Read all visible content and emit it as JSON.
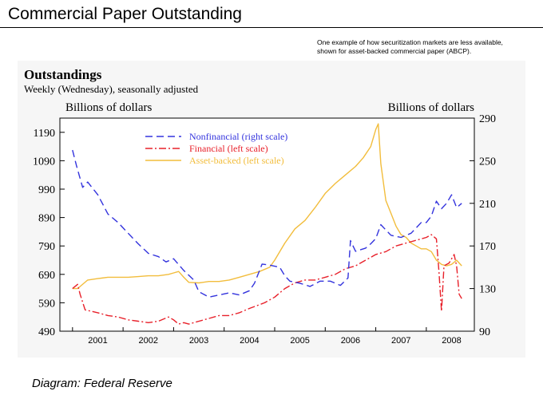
{
  "slide": {
    "title": "Commercial Paper Outstanding",
    "note_line1": "One example of how securitization markets are less available,",
    "note_line2": "shown for asset-backed commercial paper (ABCP).",
    "credit": "Diagram:  Federal Reserve"
  },
  "chart_data": {
    "type": "line",
    "title": "Outstandings",
    "subtitle": "Weekly (Wednesday), seasonally adjusted",
    "left_axis_label": "Billions of dollars",
    "right_axis_label": "Billions of dollars",
    "x_ticks": [
      "2001",
      "2002",
      "2003",
      "2004",
      "2005",
      "2006",
      "2007",
      "2008"
    ],
    "xlim": [
      2000.75,
      2008.95
    ],
    "ylim_left": [
      490,
      1240
    ],
    "ylim_right": [
      90,
      290
    ],
    "left_ticks": [
      490,
      590,
      690,
      790,
      890,
      990,
      1090,
      1190
    ],
    "right_ticks": [
      90,
      130,
      170,
      210,
      250,
      290
    ],
    "legend_position": "top-left",
    "series": [
      {
        "name": "Nonfinancial (right scale)",
        "axis": "right",
        "color": "#3333dd",
        "dash": "dashed",
        "x": [
          2001.0,
          2001.08,
          2001.2,
          2001.3,
          2001.5,
          2001.7,
          2001.9,
          2002.1,
          2002.3,
          2002.5,
          2002.7,
          2002.85,
          2003.0,
          2003.2,
          2003.4,
          2003.5,
          2003.7,
          2003.9,
          2004.1,
          2004.3,
          2004.5,
          2004.6,
          2004.75,
          2004.9,
          2005.0,
          2005.1,
          2005.2,
          2005.3,
          2005.5,
          2005.7,
          2005.9,
          2006.1,
          2006.3,
          2006.45,
          2006.5,
          2006.6,
          2006.8,
          2006.9,
          2007.0,
          2007.1,
          2007.2,
          2007.3,
          2007.5,
          2007.7,
          2007.9,
          2008.0,
          2008.1,
          2008.2,
          2008.3,
          2008.4,
          2008.5,
          2008.6,
          2008.7
        ],
        "values": [
          260,
          245,
          225,
          230,
          218,
          200,
          192,
          182,
          172,
          163,
          160,
          155,
          158,
          147,
          138,
          127,
          122,
          124,
          126,
          124,
          128,
          135,
          153,
          152,
          151,
          150,
          142,
          137,
          135,
          132,
          137,
          137,
          133,
          140,
          175,
          165,
          168,
          172,
          177,
          190,
          185,
          180,
          178,
          182,
          192,
          192,
          198,
          212,
          205,
          210,
          218,
          206,
          210
        ]
      },
      {
        "name": "Financial (left scale)",
        "axis": "left",
        "color": "#e8202a",
        "dash": "dashdot",
        "x": [
          2001.0,
          2001.1,
          2001.15,
          2001.25,
          2001.5,
          2001.7,
          2001.9,
          2002.1,
          2002.3,
          2002.5,
          2002.7,
          2002.9,
          2003.0,
          2003.1,
          2003.2,
          2003.3,
          2003.5,
          2003.7,
          2003.9,
          2004.1,
          2004.3,
          2004.5,
          2004.8,
          2005.0,
          2005.2,
          2005.4,
          2005.6,
          2005.8,
          2006.0,
          2006.2,
          2006.4,
          2006.6,
          2006.8,
          2007.0,
          2007.2,
          2007.4,
          2007.6,
          2007.8,
          2008.0,
          2008.1,
          2008.2,
          2008.25,
          2008.3,
          2008.35,
          2008.45,
          2008.55,
          2008.6,
          2008.65,
          2008.7
        ],
        "values": [
          640,
          655,
          620,
          565,
          555,
          545,
          540,
          530,
          525,
          520,
          525,
          540,
          530,
          515,
          520,
          515,
          525,
          535,
          545,
          545,
          555,
          570,
          590,
          610,
          640,
          660,
          670,
          670,
          680,
          690,
          710,
          720,
          740,
          760,
          770,
          790,
          800,
          810,
          820,
          830,
          815,
          700,
          560,
          720,
          730,
          760,
          720,
          620,
          605
        ]
      },
      {
        "name": "Asset-backed (left scale)",
        "axis": "left",
        "color": "#f2bd3c",
        "dash": "solid",
        "x": [
          2001.0,
          2001.1,
          2001.3,
          2001.5,
          2001.7,
          2001.9,
          2002.1,
          2002.3,
          2002.5,
          2002.7,
          2002.9,
          2003.0,
          2003.1,
          2003.2,
          2003.3,
          2003.5,
          2003.7,
          2003.9,
          2004.1,
          2004.3,
          2004.5,
          2004.7,
          2004.9,
          2005.0,
          2005.2,
          2005.4,
          2005.6,
          2005.8,
          2006.0,
          2006.2,
          2006.4,
          2006.6,
          2006.75,
          2006.9,
          2007.0,
          2007.05,
          2007.1,
          2007.2,
          2007.3,
          2007.4,
          2007.5,
          2007.6,
          2007.7,
          2007.8,
          2007.9,
          2008.0,
          2008.1,
          2008.2,
          2008.3,
          2008.4,
          2008.5,
          2008.6,
          2008.7
        ],
        "values": [
          640,
          640,
          670,
          675,
          680,
          680,
          680,
          682,
          685,
          685,
          690,
          695,
          700,
          680,
          662,
          660,
          665,
          665,
          670,
          680,
          690,
          700,
          715,
          740,
          800,
          850,
          880,
          925,
          975,
          1010,
          1040,
          1070,
          1100,
          1140,
          1200,
          1220,
          1080,
          950,
          905,
          860,
          830,
          820,
          800,
          790,
          780,
          780,
          770,
          740,
          725,
          720,
          725,
          740,
          720
        ]
      }
    ]
  }
}
